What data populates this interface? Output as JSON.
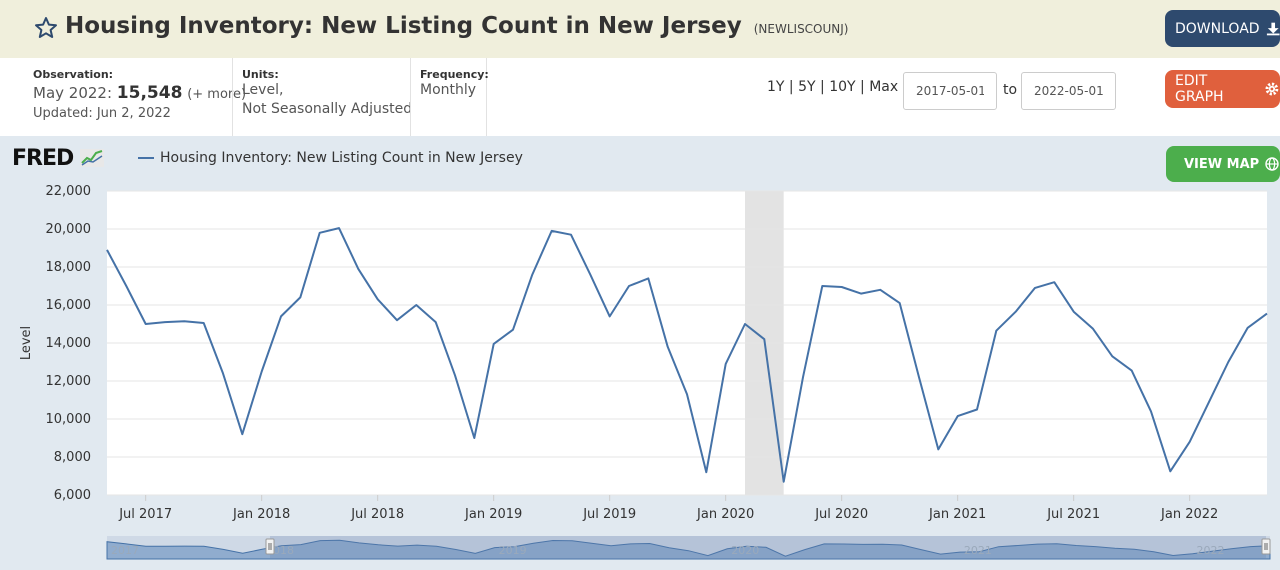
{
  "header": {
    "title": "Housing Inventory: New Listing Count in New Jersey",
    "series_id": "(NEWLISCOUNJ)",
    "download_label": "DOWNLOAD"
  },
  "meta": {
    "observation_label": "Observation:",
    "observation_period": "May 2022:",
    "observation_value": "15,548",
    "observation_more": "(+ more)",
    "updated": "Updated: Jun 2, 2022",
    "units_label": "Units:",
    "units_line1": "Level,",
    "units_line2": "Not Seasonally Adjusted",
    "frequency_label": "Frequency:",
    "frequency_value": "Monthly"
  },
  "controls": {
    "range_1y": "1Y",
    "range_5y": "5Y",
    "range_10y": "10Y",
    "range_max": "Max",
    "separator": "|",
    "start_date": "2017-05-01",
    "to_label": "to",
    "end_date": "2022-05-01",
    "edit_label": "EDIT GRAPH",
    "view_map_label": "VIEW MAP"
  },
  "brand": {
    "logo_text": "FRED"
  },
  "colors": {
    "line": "#4572a7",
    "recession": "#e3e3e3",
    "download": "#2e4a6e",
    "edit": "#e0603d",
    "viewmap": "#4cae4c",
    "title_bar": "#f0efdc"
  },
  "chart_data": {
    "type": "line",
    "series": [
      {
        "name": "Housing Inventory: New Listing Count in New Jersey",
        "x": [
          "2017-05",
          "2017-06",
          "2017-07",
          "2017-08",
          "2017-09",
          "2017-10",
          "2017-11",
          "2017-12",
          "2018-01",
          "2018-02",
          "2018-03",
          "2018-04",
          "2018-05",
          "2018-06",
          "2018-07",
          "2018-08",
          "2018-09",
          "2018-10",
          "2018-11",
          "2018-12",
          "2019-01",
          "2019-02",
          "2019-03",
          "2019-04",
          "2019-05",
          "2019-06",
          "2019-07",
          "2019-08",
          "2019-09",
          "2019-10",
          "2019-11",
          "2019-12",
          "2020-01",
          "2020-02",
          "2020-03",
          "2020-04",
          "2020-05",
          "2020-06",
          "2020-07",
          "2020-08",
          "2020-09",
          "2020-10",
          "2020-11",
          "2020-12",
          "2021-01",
          "2021-02",
          "2021-03",
          "2021-04",
          "2021-05",
          "2021-06",
          "2021-07",
          "2021-08",
          "2021-09",
          "2021-10",
          "2021-11",
          "2021-12",
          "2022-01",
          "2022-02",
          "2022-03",
          "2022-04",
          "2022-05"
        ],
        "values": [
          18900,
          17000,
          15000,
          15100,
          15150,
          15050,
          12400,
          9200,
          12500,
          15400,
          16400,
          19800,
          20050,
          17900,
          16300,
          15200,
          16000,
          15100,
          12300,
          9000,
          13950,
          14700,
          17600,
          19900,
          19700,
          17600,
          15400,
          17000,
          17400,
          13800,
          11300,
          7200,
          12900,
          15000,
          14200,
          6700,
          12200,
          17000,
          16950,
          16600,
          16800,
          16100,
          12200,
          8400,
          10150,
          10500,
          14650,
          15650,
          16900,
          17200,
          15650,
          14750,
          13300,
          12550,
          10400,
          7250,
          8800,
          10900,
          13000,
          14800,
          15548
        ]
      }
    ],
    "recessions": [
      [
        "2020-02",
        "2020-04"
      ]
    ],
    "ylabel": "Level",
    "ylim": [
      6000,
      22000
    ],
    "y_ticks": [
      "6,000",
      "8,000",
      "10,000",
      "12,000",
      "14,000",
      "16,000",
      "18,000",
      "20,000",
      "22,000"
    ],
    "x_ticks": [
      "Jul 2017",
      "Jan 2018",
      "Jul 2018",
      "Jan 2019",
      "Jul 2019",
      "Jan 2020",
      "Jul 2020",
      "Jan 2021",
      "Jul 2021",
      "Jan 2022"
    ],
    "x_tick_dates": [
      "2017-07",
      "2018-01",
      "2018-07",
      "2019-01",
      "2019-07",
      "2020-01",
      "2020-07",
      "2021-01",
      "2021-07",
      "2022-01"
    ],
    "navigator_labels": [
      "2017",
      "2018",
      "2019",
      "2020",
      "2021",
      "2022"
    ],
    "grid": true,
    "legend": "top-left"
  }
}
